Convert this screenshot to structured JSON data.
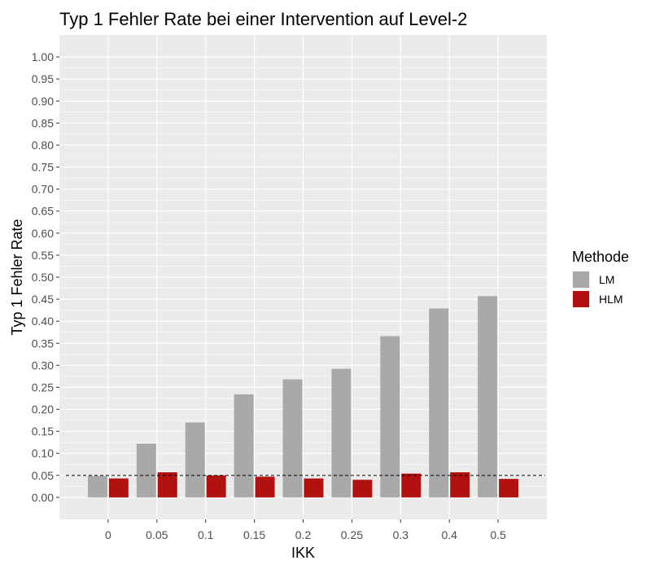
{
  "chart_data": {
    "type": "bar",
    "title": "Typ 1 Fehler Rate bei einer Intervention auf Level-2",
    "xlabel": "IKK",
    "ylabel": "Typ 1 Fehler Rate",
    "categories": [
      "0",
      "0.05",
      "0.1",
      "0.15",
      "0.2",
      "0.25",
      "0.3",
      "0.4",
      "0.5"
    ],
    "series": [
      {
        "name": "LM",
        "color": "#a9a9a9",
        "values": [
          0.049,
          0.122,
          0.17,
          0.234,
          0.268,
          0.292,
          0.366,
          0.429,
          0.457
        ]
      },
      {
        "name": "HLM",
        "color": "#b2120f",
        "values": [
          0.043,
          0.057,
          0.05,
          0.047,
          0.043,
          0.04,
          0.054,
          0.057,
          0.042
        ]
      }
    ],
    "ylim": [
      -0.05,
      1.05
    ],
    "yticks": [
      "0.00",
      "0.05",
      "0.10",
      "0.15",
      "0.20",
      "0.25",
      "0.30",
      "0.35",
      "0.40",
      "0.45",
      "0.50",
      "0.55",
      "0.60",
      "0.65",
      "0.70",
      "0.75",
      "0.80",
      "0.85",
      "0.90",
      "0.95",
      "1.00"
    ],
    "reference_line": 0.05,
    "legend": {
      "title": "Methode",
      "placement": "right"
    },
    "grid": true,
    "panel_color": "#ebebeb",
    "grid_color": "#ffffff"
  }
}
